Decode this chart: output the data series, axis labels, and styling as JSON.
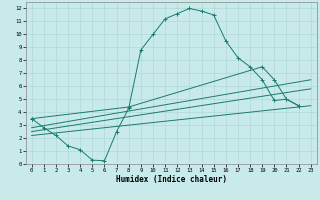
{
  "xlabel": "Humidex (Indice chaleur)",
  "bg_color": "#c8eaea",
  "grid_color": "#b0d8d8",
  "line_color": "#1a7a6e",
  "xlim": [
    -0.5,
    23.5
  ],
  "ylim": [
    0,
    12.5
  ],
  "xticks": [
    0,
    1,
    2,
    3,
    4,
    5,
    6,
    7,
    8,
    9,
    10,
    11,
    12,
    13,
    14,
    15,
    16,
    17,
    18,
    19,
    20,
    21,
    22,
    23
  ],
  "yticks": [
    0,
    1,
    2,
    3,
    4,
    5,
    6,
    7,
    8,
    9,
    10,
    11,
    12
  ],
  "curve1_x": [
    0,
    1,
    2,
    3,
    4,
    5,
    6,
    7,
    8,
    9,
    10,
    11,
    12,
    13,
    14,
    15,
    16,
    17,
    18,
    19,
    20,
    21,
    22
  ],
  "curve1_y": [
    3.5,
    2.8,
    2.2,
    1.4,
    1.1,
    0.3,
    0.25,
    2.5,
    4.3,
    8.8,
    10.0,
    11.2,
    11.6,
    12.0,
    11.8,
    11.5,
    9.5,
    8.2,
    7.5,
    6.5,
    4.9,
    5.0,
    4.5
  ],
  "curve2_x": [
    0,
    8,
    19,
    20,
    21,
    22
  ],
  "curve2_y": [
    3.5,
    4.4,
    7.5,
    6.5,
    5.0,
    4.5
  ],
  "line1_x": [
    0,
    23
  ],
  "line1_y": [
    2.8,
    6.5
  ],
  "line2_x": [
    0,
    23
  ],
  "line2_y": [
    2.5,
    5.8
  ],
  "line3_x": [
    0,
    23
  ],
  "line3_y": [
    2.2,
    4.5
  ]
}
